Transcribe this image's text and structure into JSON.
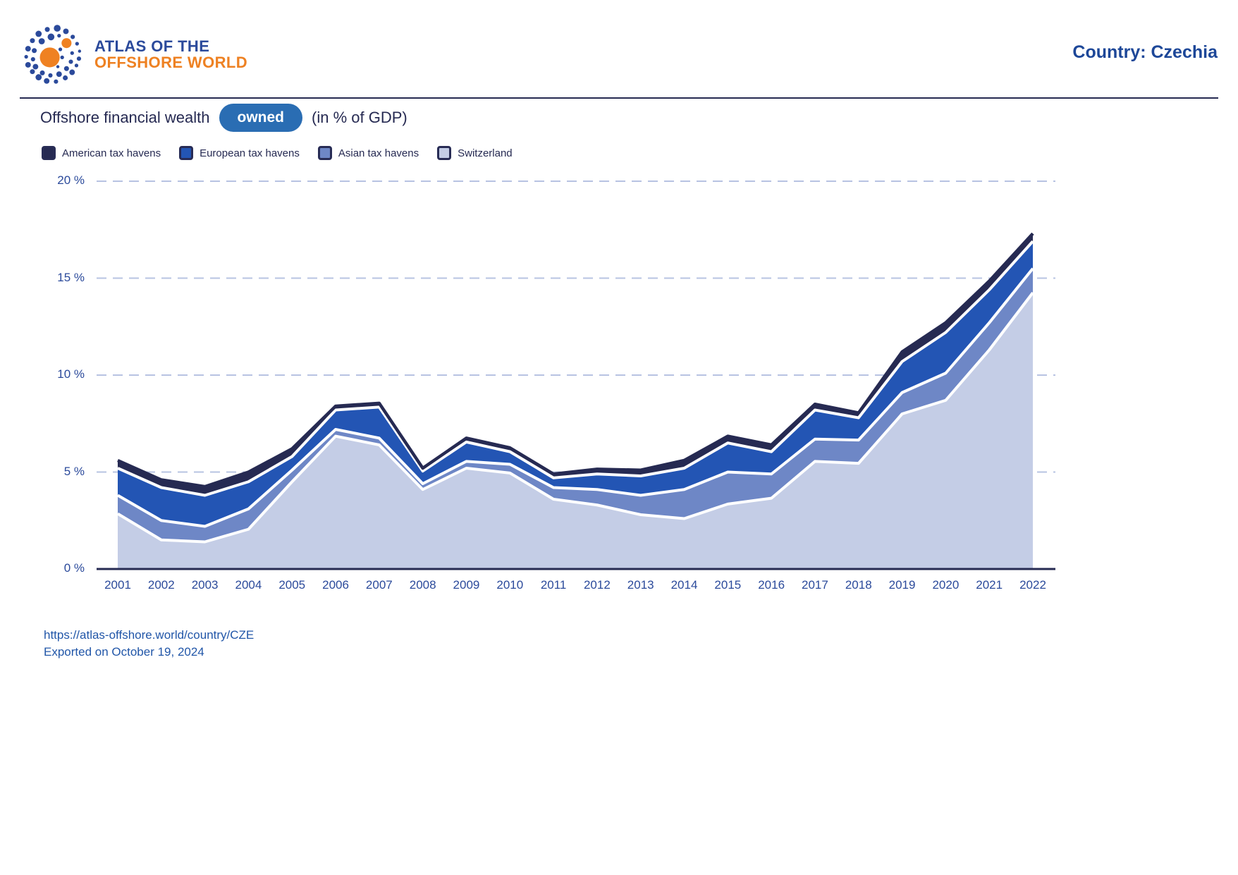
{
  "header": {
    "logo_line1": "ATLAS OF THE",
    "logo_line2": "OFFSHORE WORLD",
    "country_label": "Country: Czechia"
  },
  "title": {
    "prefix": "Offshore financial wealth",
    "badge": "owned",
    "suffix": "(in % of GDP)"
  },
  "legend": [
    {
      "label": "American tax havens",
      "color": "#262a52"
    },
    {
      "label": "European tax havens",
      "color": "#2355b4"
    },
    {
      "label": "Asian tax havens",
      "color": "#6e87c6"
    },
    {
      "label": "Switzerland",
      "color": "#c4cde6"
    }
  ],
  "footer": {
    "url": "https://atlas-offshore.world/country/CZE",
    "exported": "Exported on October 19, 2024"
  },
  "chart_data": {
    "type": "area",
    "stacked": true,
    "title": "Offshore financial wealth owned (in % of GDP)",
    "xlabel": "",
    "ylabel": "",
    "x": [
      2001,
      2002,
      2003,
      2004,
      2005,
      2006,
      2007,
      2008,
      2009,
      2010,
      2011,
      2012,
      2013,
      2014,
      2015,
      2016,
      2017,
      2018,
      2019,
      2020,
      2021,
      2022
    ],
    "series": [
      {
        "name": "Switzerland",
        "color": "#c4cde6",
        "values": [
          2.85,
          1.5,
          1.4,
          2.05,
          4.5,
          6.85,
          6.4,
          4.1,
          5.2,
          4.95,
          3.6,
          3.3,
          2.8,
          2.6,
          3.35,
          3.65,
          5.55,
          5.45,
          8.0,
          8.7,
          11.3,
          14.25
        ]
      },
      {
        "name": "Asian tax havens",
        "color": "#6e87c6",
        "values": [
          0.95,
          1.0,
          0.8,
          1.05,
          0.6,
          0.35,
          0.35,
          0.3,
          0.35,
          0.45,
          0.6,
          0.8,
          1.0,
          1.5,
          1.65,
          1.25,
          1.15,
          1.2,
          1.1,
          1.4,
          1.4,
          1.25
        ]
      },
      {
        "name": "European tax havens",
        "color": "#2355b4",
        "values": [
          1.4,
          1.7,
          1.6,
          1.4,
          0.7,
          1.0,
          1.6,
          0.65,
          1.0,
          0.65,
          0.5,
          0.8,
          1.0,
          1.1,
          1.5,
          1.15,
          1.5,
          1.15,
          1.6,
          2.1,
          1.7,
          1.4
        ]
      },
      {
        "name": "American tax havens",
        "color": "#262a52",
        "values": [
          0.4,
          0.4,
          0.45,
          0.5,
          0.4,
          0.2,
          0.2,
          0.15,
          0.2,
          0.2,
          0.2,
          0.25,
          0.3,
          0.4,
          0.35,
          0.35,
          0.3,
          0.25,
          0.5,
          0.5,
          0.45,
          0.4
        ]
      }
    ],
    "yticks": [
      0,
      5,
      10,
      15,
      20
    ],
    "ytick_suffix": " %",
    "ylim": [
      0,
      20
    ],
    "grid": "horizontal-dashed",
    "grid_color": "#b7c3e2",
    "separator_color": "#ffffff",
    "legend_position": "top-left"
  }
}
